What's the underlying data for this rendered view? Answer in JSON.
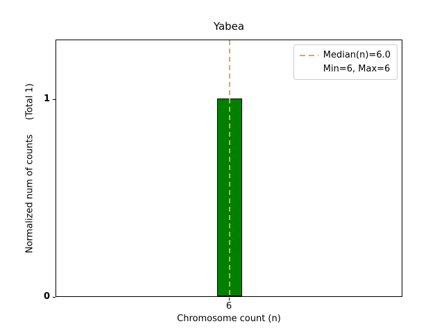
{
  "chart_data": {
    "type": "bar",
    "title": "Yabea",
    "xlabel": "Chromosome count (n)",
    "ylabel": "Normalized num of counts     (Total 1)",
    "categories": [
      "6"
    ],
    "values": [
      1
    ],
    "xticks": [
      "6"
    ],
    "yticks": [
      0,
      1
    ],
    "ylim": [
      0,
      1.3
    ],
    "grid": false,
    "bar_color": "#008000",
    "bar_edge_color": "#000000",
    "median_line": {
      "x": "6",
      "value": 6.0,
      "color": "#E8A33D",
      "style": "dashed"
    },
    "legend": {
      "position": "upper right",
      "entries": [
        {
          "label": "Median(n)=6.0",
          "handle": "dashed-line",
          "color": "#E8A33D"
        },
        {
          "label": "Min=6, Max=6",
          "handle": "none",
          "color": ""
        }
      ]
    }
  }
}
